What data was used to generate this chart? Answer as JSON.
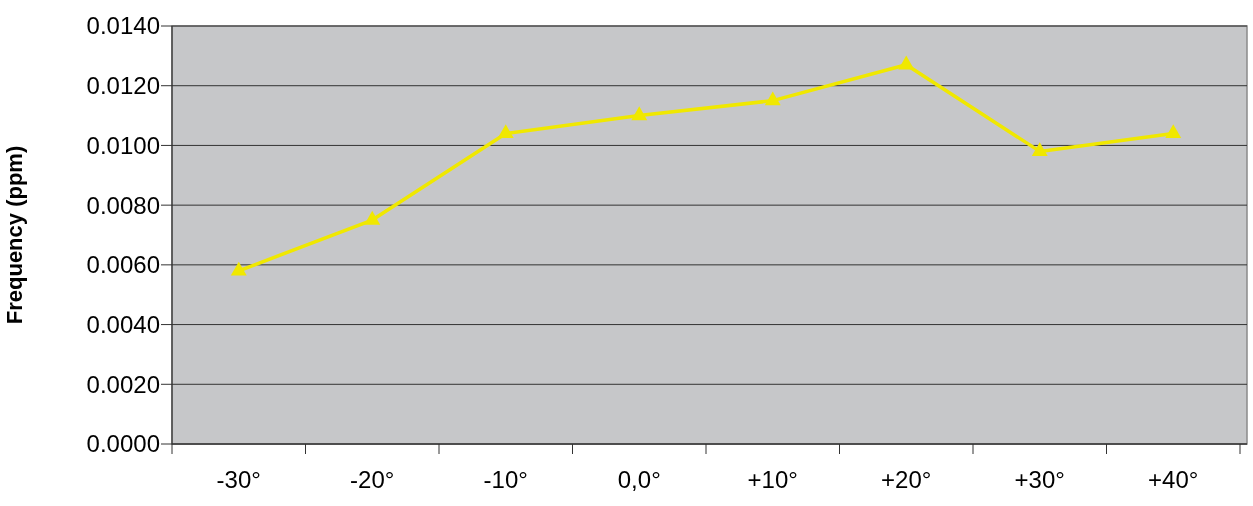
{
  "chart_data": {
    "type": "line",
    "ylabel": "Frequency (ppm)",
    "categories": [
      "-30°",
      "-20°",
      "-10°",
      "0,0°",
      "+10°",
      "+20°",
      "+30°",
      "+40°"
    ],
    "series": [
      {
        "color": "#f0e800",
        "values": [
          0.0058,
          0.0075,
          0.0104,
          0.011,
          0.0115,
          0.0127,
          0.0098,
          0.0104
        ]
      }
    ],
    "ylim": [
      0,
      0.014
    ],
    "yticks": [
      {
        "value": 0,
        "label": "0.0000"
      },
      {
        "value": 0.002,
        "label": "0.0020"
      },
      {
        "value": 0.004,
        "label": "0.0040"
      },
      {
        "value": 0.006,
        "label": "0.0060"
      },
      {
        "value": 0.008,
        "label": "0.0080"
      },
      {
        "value": 0.01,
        "label": "0.0100"
      },
      {
        "value": 0.012,
        "label": "0.0120"
      },
      {
        "value": 0.014,
        "label": "0.0140"
      }
    ],
    "grid": "y",
    "marker": "triangle",
    "line_style": "solid"
  }
}
